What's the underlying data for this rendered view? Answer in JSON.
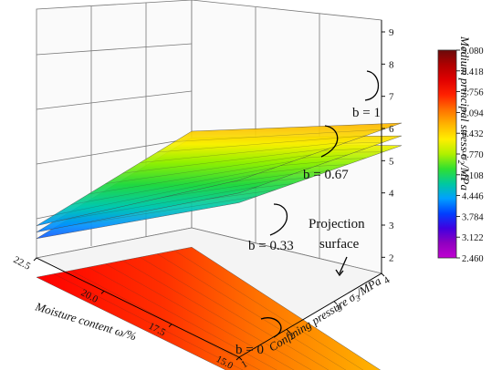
{
  "chart_data": {
    "type": "surface3d",
    "title": "",
    "axes": {
      "x": {
        "label_main": "Moisture content ω",
        "label_unit": "/%",
        "ticks": [
          "15.0",
          "17.5",
          "20.0",
          "22.5"
        ],
        "range": [
          15.0,
          22.5
        ]
      },
      "y": {
        "label_main": "Confining pressure σ",
        "label_sub": "3",
        "label_unit": "/MPa",
        "ticks": [
          "1",
          "2",
          "3",
          "4"
        ],
        "range": [
          1,
          4
        ]
      },
      "z": {
        "label_main": "Medium principal stress σ",
        "label_sub": "2",
        "label_unit": "/MPa",
        "ticks": [
          "2",
          "3",
          "4",
          "5",
          "6",
          "7",
          "8",
          "9"
        ],
        "range": [
          1.5,
          9
        ]
      }
    },
    "colorbar": {
      "ticks": [
        "9.080",
        "8.418",
        "7.756",
        "7.094",
        "6.432",
        "5.770",
        "5.108",
        "4.446",
        "3.784",
        "3.122",
        "2.460"
      ],
      "range": [
        2.46,
        9.08
      ],
      "colors": [
        "#6a0a0a",
        "#b00000",
        "#e00000",
        "#ff2000",
        "#ff7000",
        "#ffb400",
        "#ffee00",
        "#b0f000",
        "#30e030",
        "#00c8a0",
        "#00a0ff",
        "#0040ff",
        "#4000e0",
        "#9000c0",
        "#c000d0"
      ]
    },
    "surfaces": [
      {
        "label": "b = 1",
        "z_at_corners": {
          "x15_y1": 7.0,
          "x15_y4": 9.0,
          "x22.5_y1": 2.5,
          "x22.5_y4": 4.5
        }
      },
      {
        "label": "b = 0.67",
        "z_at_corners": {
          "x15_y1": 6.6,
          "x15_y4": 8.6,
          "x22.5_y1": 2.3,
          "x22.5_y4": 4.3
        }
      },
      {
        "label": "b = 0.33",
        "z_at_corners": {
          "x15_y1": 6.3,
          "x15_y4": 8.3,
          "x22.5_y1": 2.1,
          "x22.5_y4": 4.1
        }
      },
      {
        "label": "b = 0",
        "z_at_corners": {
          "x15_y1": 0.9,
          "x15_y4": 0.9,
          "x22.5_y1": 0.9,
          "x22.5_y4": 0.9
        }
      }
    ],
    "annotations": {
      "projection_line1": "Projection",
      "projection_line2": "surface"
    }
  }
}
